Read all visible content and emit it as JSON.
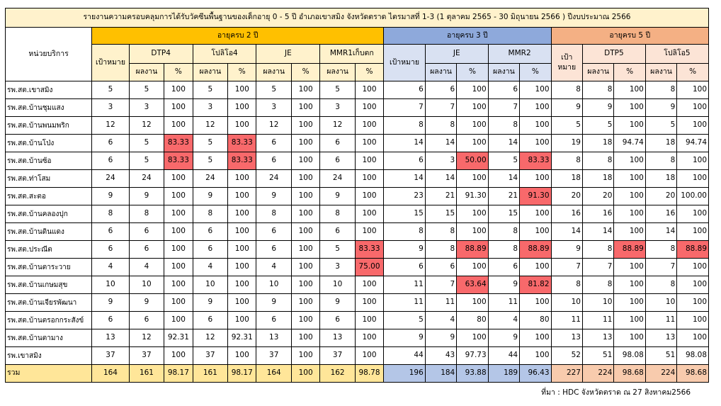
{
  "title": "รายงานความครอบคลุมการได้รับวัคซีนพื้นฐานของเด็กอายุ 0 - 5 ปี อำเภอเขาสมิง จังหวัดตราด ไตรมาสที่ 1-3 (1 ตุลาคม 2565 - 30 มิถุนายน 2566 ) ปีงบประมาณ 2566",
  "headers": {
    "unit": "หน่วยบริการ",
    "age2": "อายุครบ 2 ปี",
    "age3": "อายุครบ 3 ปี",
    "age5": "อายุครบ 5 ปี",
    "target": "เป้าหมาย",
    "target_age5": "เป้าหมาย",
    "result": "ผลงาน",
    "percent": "%",
    "dtp4": "DTP4",
    "polio4": "โปลิโอ4",
    "je": "JE",
    "mmr1": "MMR1เก็บตก",
    "je3": "JE",
    "mmr2": "MMR2",
    "dtp5": "DTP5",
    "polio5": "โปลิโอ5"
  },
  "rows": [
    {
      "name": "รพ.สต.เขาสมิง",
      "v": [
        "5",
        "5",
        "100",
        "5",
        "100",
        "5",
        "100",
        "5",
        "100",
        "6",
        "6",
        "100",
        "6",
        "100",
        "8",
        "8",
        "100",
        "8",
        "100"
      ]
    },
    {
      "name": "รพ.สต.บ้านชุมแสง",
      "v": [
        "3",
        "3",
        "100",
        "3",
        "100",
        "3",
        "100",
        "3",
        "100",
        "7",
        "7",
        "100",
        "7",
        "100",
        "9",
        "9",
        "100",
        "9",
        "100"
      ]
    },
    {
      "name": "รพ.สต.บ้านพนมพริก",
      "v": [
        "12",
        "12",
        "100",
        "12",
        "100",
        "12",
        "100",
        "12",
        "100",
        "8",
        "8",
        "100",
        "8",
        "100",
        "5",
        "5",
        "100",
        "5",
        "100"
      ]
    },
    {
      "name": "รพ.สต.บ้านโป่ง",
      "v": [
        "6",
        "5",
        "83.33",
        "5",
        "83.33",
        "6",
        "100",
        "6",
        "100",
        "14",
        "14",
        "100",
        "14",
        "100",
        "19",
        "18",
        "94.74",
        "18",
        "94.74"
      ],
      "hl": [
        2,
        4
      ]
    },
    {
      "name": "รพ.สต.บ้านซ้อ",
      "v": [
        "6",
        "5",
        "83.33",
        "5",
        "83.33",
        "6",
        "100",
        "6",
        "100",
        "6",
        "3",
        "50.00",
        "5",
        "83.33",
        "8",
        "8",
        "100",
        "8",
        "100"
      ],
      "hl": [
        2,
        4,
        11,
        13
      ]
    },
    {
      "name": "รพ.สต.ท่าโสม",
      "v": [
        "24",
        "24",
        "100",
        "24",
        "100",
        "24",
        "100",
        "24",
        "100",
        "14",
        "14",
        "100",
        "14",
        "100",
        "18",
        "18",
        "100",
        "18",
        "100"
      ]
    },
    {
      "name": "รพ.สต.สะตอ",
      "v": [
        "9",
        "9",
        "100",
        "9",
        "100",
        "9",
        "100",
        "9",
        "100",
        "23",
        "21",
        "91.30",
        "21",
        "91.30",
        "20",
        "20",
        "100",
        "20",
        "100.00"
      ],
      "hl": [
        13
      ]
    },
    {
      "name": "รพ.สต.บ้านคลองปุก",
      "v": [
        "8",
        "8",
        "100",
        "8",
        "100",
        "8",
        "100",
        "8",
        "100",
        "15",
        "15",
        "100",
        "15",
        "100",
        "16",
        "16",
        "100",
        "16",
        "100"
      ]
    },
    {
      "name": "รพ.สต.บ้านดินแดง",
      "v": [
        "6",
        "6",
        "100",
        "6",
        "100",
        "6",
        "100",
        "6",
        "100",
        "8",
        "8",
        "100",
        "8",
        "100",
        "14",
        "14",
        "100",
        "14",
        "100"
      ]
    },
    {
      "name": "รพ.สต.ประณีต",
      "v": [
        "6",
        "6",
        "100",
        "6",
        "100",
        "6",
        "100",
        "5",
        "83.33",
        "9",
        "8",
        "88.89",
        "8",
        "88.89",
        "9",
        "8",
        "88.89",
        "8",
        "88.89"
      ],
      "hl": [
        8,
        11,
        13,
        16,
        18
      ]
    },
    {
      "name": "รพ.สต.บ้านตาระวาย",
      "v": [
        "4",
        "4",
        "100",
        "4",
        "100",
        "4",
        "100",
        "3",
        "75.00",
        "6",
        "6",
        "100",
        "6",
        "100",
        "7",
        "7",
        "100",
        "7",
        "100"
      ],
      "hl": [
        8
      ]
    },
    {
      "name": "รพ.สต.บ้านเกษมสุข",
      "v": [
        "10",
        "10",
        "100",
        "10",
        "100",
        "10",
        "100",
        "10",
        "100",
        "11",
        "7",
        "63.64",
        "9",
        "81.82",
        "8",
        "8",
        "100",
        "8",
        "100"
      ],
      "hl": [
        11,
        13
      ]
    },
    {
      "name": "รพ.สต.บ้านเจียรพัฒนา",
      "v": [
        "9",
        "9",
        "100",
        "9",
        "100",
        "9",
        "100",
        "9",
        "100",
        "11",
        "11",
        "100",
        "11",
        "100",
        "10",
        "10",
        "100",
        "10",
        "100"
      ]
    },
    {
      "name": "รพ.สต.บ้านตรอกกระสังข์",
      "v": [
        "6",
        "6",
        "100",
        "6",
        "100",
        "6",
        "100",
        "6",
        "100",
        "5",
        "4",
        "80",
        "4",
        "80",
        "11",
        "11",
        "100",
        "11",
        "100"
      ]
    },
    {
      "name": "รพ.สต.บ้านตามาง",
      "v": [
        "13",
        "12",
        "92.31",
        "12",
        "92.31",
        "13",
        "100",
        "13",
        "100",
        "9",
        "9",
        "100",
        "9",
        "100",
        "13",
        "13",
        "100",
        "13",
        "100"
      ]
    },
    {
      "name": "รพ.เขาสมิง",
      "v": [
        "37",
        "37",
        "100",
        "37",
        "100",
        "37",
        "100",
        "37",
        "100",
        "44",
        "43",
        "97.73",
        "44",
        "100",
        "52",
        "51",
        "98.08",
        "51",
        "98.08"
      ]
    }
  ],
  "total": {
    "name": "รวม",
    "v": [
      "164",
      "161",
      "98.17",
      "161",
      "98.17",
      "164",
      "100",
      "162",
      "98.78",
      "196",
      "184",
      "93.88",
      "189",
      "96.43",
      "227",
      "224",
      "98.68",
      "224",
      "98.68"
    ]
  },
  "source": "ที่มา : HDC จังหวัดตราด ณ 27 สิงหาคม2566",
  "colors": {
    "age2_header": "#ffc000",
    "age3_header": "#8ea9db",
    "age5_header": "#f4b084",
    "below_target_highlight": "#f8696b",
    "title_background": "#fff2cc"
  }
}
